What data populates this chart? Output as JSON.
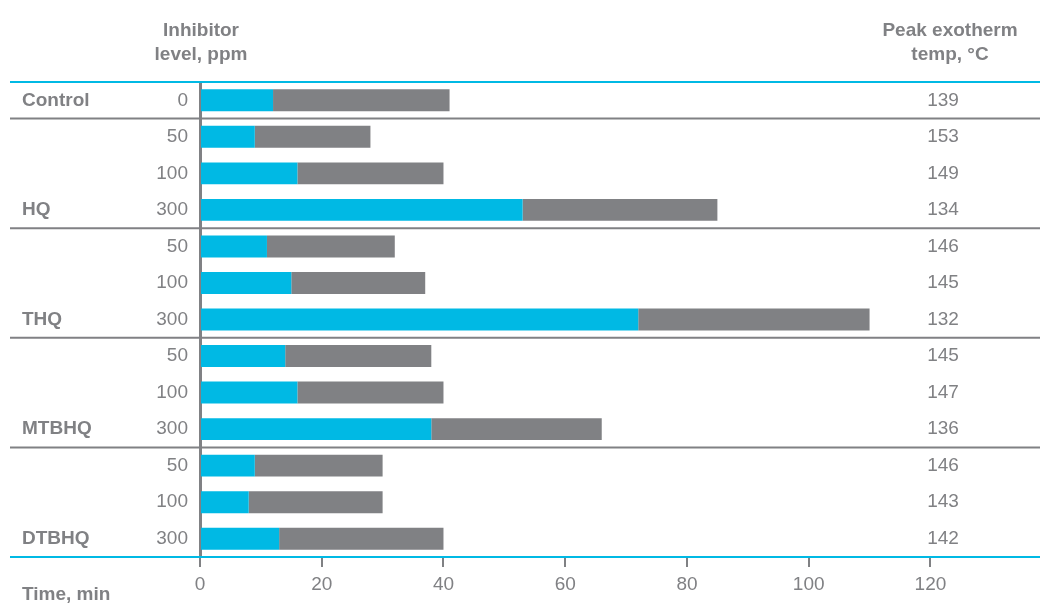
{
  "chart_data": {
    "type": "bar",
    "orientation": "horizontal",
    "stacked": true,
    "xlabel": "Time, min",
    "ylabel": "Inhibitor level, ppm",
    "y2label": "Peak exotherm temp, °C",
    "categories": [
      "0",
      "50",
      "100",
      "300",
      "50",
      "100",
      "300",
      "50",
      "100",
      "300",
      "50",
      "100",
      "300"
    ],
    "series": [
      {
        "color": "#00b9e4",
        "values": [
          12,
          9,
          16,
          53,
          11,
          15,
          72,
          14,
          16,
          38,
          9,
          8,
          13
        ]
      },
      {
        "color": "#808184",
        "values": [
          29,
          19,
          24,
          32,
          21,
          22,
          38,
          24,
          24,
          28,
          21,
          22,
          27
        ]
      }
    ],
    "xlim": [
      0,
      138
    ],
    "xticks": [
      0,
      20,
      40,
      60,
      80,
      100,
      120
    ],
    "grid": false,
    "legend": false,
    "annotations": [
      "Control",
      "HQ",
      "THQ",
      "MTBHQ",
      "DTBHQ",
      "139",
      "153",
      "149",
      "134",
      "146",
      "145",
      "132",
      "145",
      "147",
      "136",
      "146",
      "143",
      "142"
    ]
  }
}
